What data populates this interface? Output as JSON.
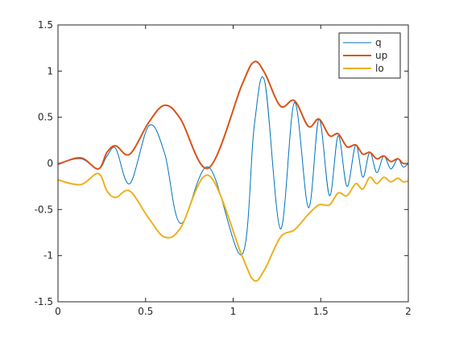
{
  "chart_data": {
    "type": "line",
    "x": [
      0,
      0.13,
      0.23,
      0.28,
      0.33,
      0.41,
      0.52,
      0.61,
      0.7,
      0.86,
      1.05,
      1.12,
      1.18,
      1.27,
      1.35,
      1.43,
      1.49,
      1.55,
      1.6,
      1.65,
      1.7,
      1.74,
      1.78,
      1.82,
      1.86,
      1.9,
      1.94,
      1.97,
      2.0
    ],
    "series": [
      {
        "name": "q",
        "color": "#0072bd",
        "values": [
          0,
          0.05,
          -0.06,
          0.08,
          0.16,
          -0.22,
          0.41,
          0.1,
          -0.65,
          -0.04,
          -0.99,
          0.4,
          0.89,
          -0.71,
          0.66,
          -0.48,
          0.48,
          -0.35,
          0.3,
          -0.25,
          0.2,
          -0.15,
          0.12,
          -0.1,
          0.08,
          -0.06,
          0.05,
          -0.04,
          0
        ]
      },
      {
        "name": "up",
        "color": "#d95319",
        "values": [
          -0.01,
          0.06,
          -0.06,
          0.12,
          0.19,
          0.1,
          0.45,
          0.63,
          0.48,
          -0.05,
          0.85,
          1.1,
          0.98,
          0.62,
          0.68,
          0.4,
          0.48,
          0.3,
          0.32,
          0.18,
          0.2,
          0.1,
          0.12,
          0.05,
          0.08,
          0.02,
          0.05,
          0.0,
          0.0
        ]
      },
      {
        "name": "lo",
        "color": "#edb120",
        "values": [
          -0.18,
          -0.23,
          -0.11,
          -0.3,
          -0.37,
          -0.3,
          -0.6,
          -0.8,
          -0.7,
          -0.13,
          -1.0,
          -1.27,
          -1.15,
          -0.8,
          -0.72,
          -0.55,
          -0.45,
          -0.45,
          -0.32,
          -0.35,
          -0.22,
          -0.28,
          -0.15,
          -0.22,
          -0.15,
          -0.2,
          -0.16,
          -0.2,
          -0.19
        ]
      }
    ],
    "xlim": [
      0,
      2
    ],
    "xticks": [
      0,
      0.5,
      1,
      1.5,
      2
    ],
    "ylim": [
      -1.5,
      1.5
    ],
    "yticks": [
      -1.5,
      -1,
      -0.5,
      0,
      0.5,
      1,
      1.5
    ],
    "grid": false,
    "legend": "northeast"
  }
}
